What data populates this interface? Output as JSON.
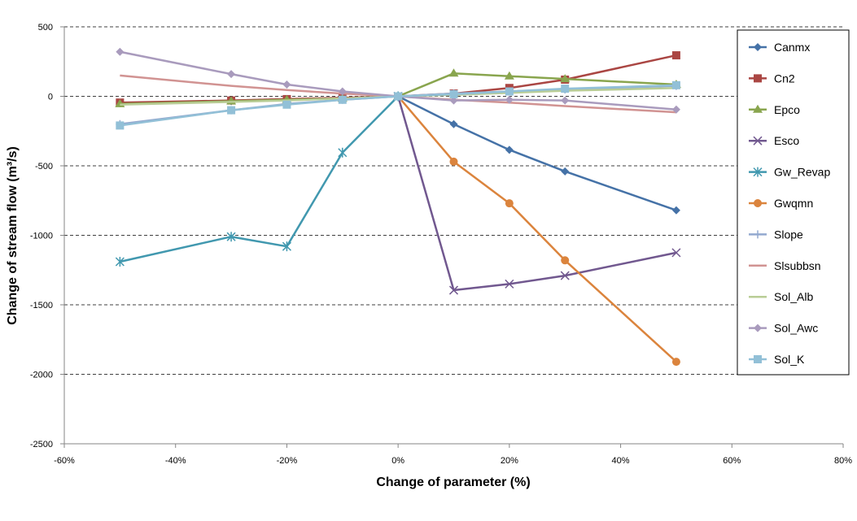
{
  "chart_data": {
    "type": "line",
    "xlabel": "Change of parameter (%)",
    "ylabel": "Change of stream flow (m³/s)",
    "xlim": [
      -60,
      80
    ],
    "ylim": [
      -2500,
      500
    ],
    "x_ticks": [
      -60,
      -40,
      -20,
      0,
      20,
      40,
      60,
      80
    ],
    "x_tick_labels": [
      "-60%",
      "-40%",
      "-20%",
      "0%",
      "20%",
      "40%",
      "60%",
      "80%"
    ],
    "y_ticks": [
      -2500,
      -2000,
      -1500,
      -1000,
      -500,
      0,
      500
    ],
    "y_tick_labels": [
      "-2500",
      "-2000",
      "-1500",
      "-1000",
      "-500",
      "0",
      "500"
    ],
    "grid": "horizontal-dashed",
    "legend_position": "right",
    "series": [
      {
        "name": "Canmx",
        "color": "#4572a7",
        "marker": "diamond",
        "x": [
          -50,
          -30,
          -20,
          -10,
          0,
          10,
          20,
          30,
          50
        ],
        "y": [
          -50,
          -35,
          -25,
          -15,
          0,
          -200,
          -385,
          -540,
          -820
        ]
      },
      {
        "name": "Cn2",
        "color": "#aa4643",
        "marker": "square",
        "x": [
          -50,
          -30,
          -20,
          -10,
          0,
          10,
          20,
          30,
          50
        ],
        "y": [
          -45,
          -30,
          -20,
          -10,
          0,
          20,
          60,
          120,
          295
        ]
      },
      {
        "name": "Epco",
        "color": "#89a54e",
        "marker": "triangle",
        "x": [
          -50,
          -30,
          -20,
          -10,
          0,
          10,
          20,
          30,
          50
        ],
        "y": [
          -55,
          -35,
          -25,
          -15,
          0,
          165,
          145,
          125,
          85
        ]
      },
      {
        "name": "Esco",
        "color": "#71588f",
        "marker": "x",
        "x": [
          0,
          10,
          20,
          30,
          50
        ],
        "y": [
          0,
          -1395,
          -1350,
          -1290,
          -1125
        ]
      },
      {
        "name": "Gw_Revap",
        "color": "#4198af",
        "marker": "star",
        "x": [
          -50,
          -30,
          -20,
          -10,
          0
        ],
        "y": [
          -1190,
          -1010,
          -1080,
          -405,
          0
        ]
      },
      {
        "name": "Gwqmn",
        "color": "#db843d",
        "marker": "circle",
        "x": [
          0,
          10,
          20,
          30,
          50
        ],
        "y": [
          0,
          -470,
          -770,
          -1180,
          -1910
        ]
      },
      {
        "name": "Slope",
        "color": "#93a9cf",
        "marker": "plus",
        "x": [
          -50,
          -30,
          -20,
          -10,
          0,
          10,
          20,
          30,
          50
        ],
        "y": [
          -200,
          -100,
          -55,
          -25,
          0,
          20,
          35,
          50,
          75
        ]
      },
      {
        "name": "Slsubbsn",
        "color": "#d19392",
        "marker": "none",
        "x": [
          -50,
          -30,
          -20,
          -10,
          0,
          10,
          20,
          30,
          50
        ],
        "y": [
          150,
          75,
          45,
          20,
          0,
          -25,
          -45,
          -70,
          -115
        ]
      },
      {
        "name": "Sol_Alb",
        "color": "#b9cd96",
        "marker": "none",
        "x": [
          -50,
          -30,
          -20,
          -10,
          0,
          10,
          20,
          30,
          50
        ],
        "y": [
          -60,
          -40,
          -30,
          -15,
          0,
          10,
          25,
          40,
          60
        ]
      },
      {
        "name": "Sol_Awc",
        "color": "#a99bbd",
        "marker": "diamond",
        "x": [
          -50,
          -30,
          -20,
          -10,
          0,
          10,
          20,
          30,
          50
        ],
        "y": [
          320,
          160,
          85,
          35,
          0,
          -30,
          -25,
          -30,
          -95
        ]
      },
      {
        "name": "Sol_K",
        "color": "#92c0d7",
        "marker": "square",
        "x": [
          -50,
          -30,
          -20,
          -10,
          0,
          10,
          20,
          30,
          50
        ],
        "y": [
          -210,
          -100,
          -60,
          -25,
          0,
          15,
          35,
          55,
          80
        ]
      }
    ]
  }
}
